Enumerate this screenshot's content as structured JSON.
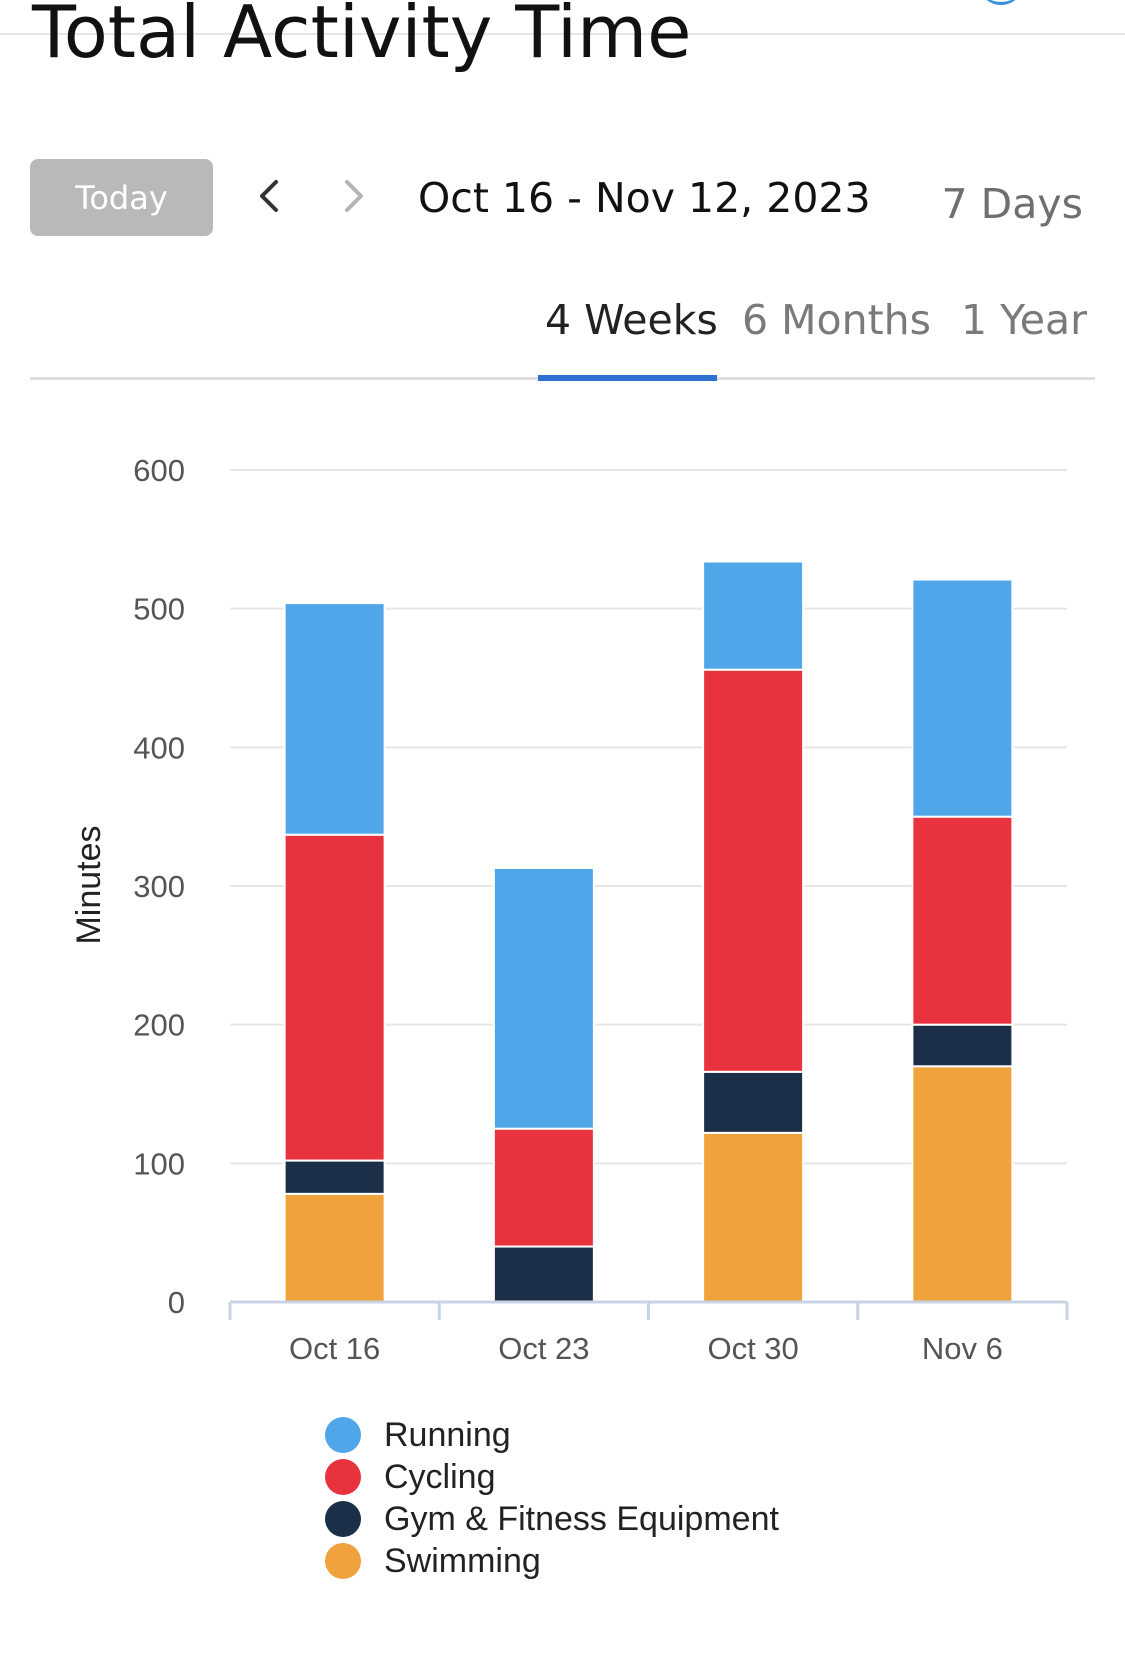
{
  "header": {
    "title": "Total Activity Time"
  },
  "controls": {
    "today_label": "Today",
    "date_range": "Oct 16 - Nov 12, 2023",
    "periods": [
      {
        "label": "7 Days",
        "active": false
      },
      {
        "label": "4 Weeks",
        "active": true
      },
      {
        "label": "6 Months",
        "active": false
      },
      {
        "label": "1 Year",
        "active": false
      }
    ]
  },
  "colors": {
    "accent": "#2f6fd1",
    "running": "#4fa6e8",
    "cycling": "#e8333f",
    "gym": "#1c2f48",
    "swimming": "#f0a23c"
  },
  "icons": {
    "prev": "chevron-left-icon",
    "next": "chevron-right-icon"
  },
  "chart_data": {
    "type": "bar",
    "stacked": true,
    "ylabel": "Minutes",
    "ylim": [
      0,
      600
    ],
    "yticks": [
      "0",
      "100",
      "200",
      "300",
      "400",
      "500",
      "600"
    ],
    "grid": true,
    "legend_position": "bottom",
    "categories": [
      "Oct 16",
      "Oct 23",
      "Oct 30",
      "Nov 6"
    ],
    "series": [
      {
        "name": "Swimming",
        "color": "#f0a23c",
        "values": [
          78,
          0,
          122,
          170
        ]
      },
      {
        "name": "Gym & Fitness Equipment",
        "color": "#1c2f48",
        "values": [
          24,
          40,
          44,
          30
        ]
      },
      {
        "name": "Cycling",
        "color": "#e8333f",
        "values": [
          235,
          85,
          290,
          150
        ]
      },
      {
        "name": "Running",
        "color": "#4fa6e8",
        "values": [
          167,
          188,
          78,
          171
        ]
      }
    ],
    "legend": [
      "Running",
      "Cycling",
      "Gym & Fitness Equipment",
      "Swimming"
    ]
  }
}
